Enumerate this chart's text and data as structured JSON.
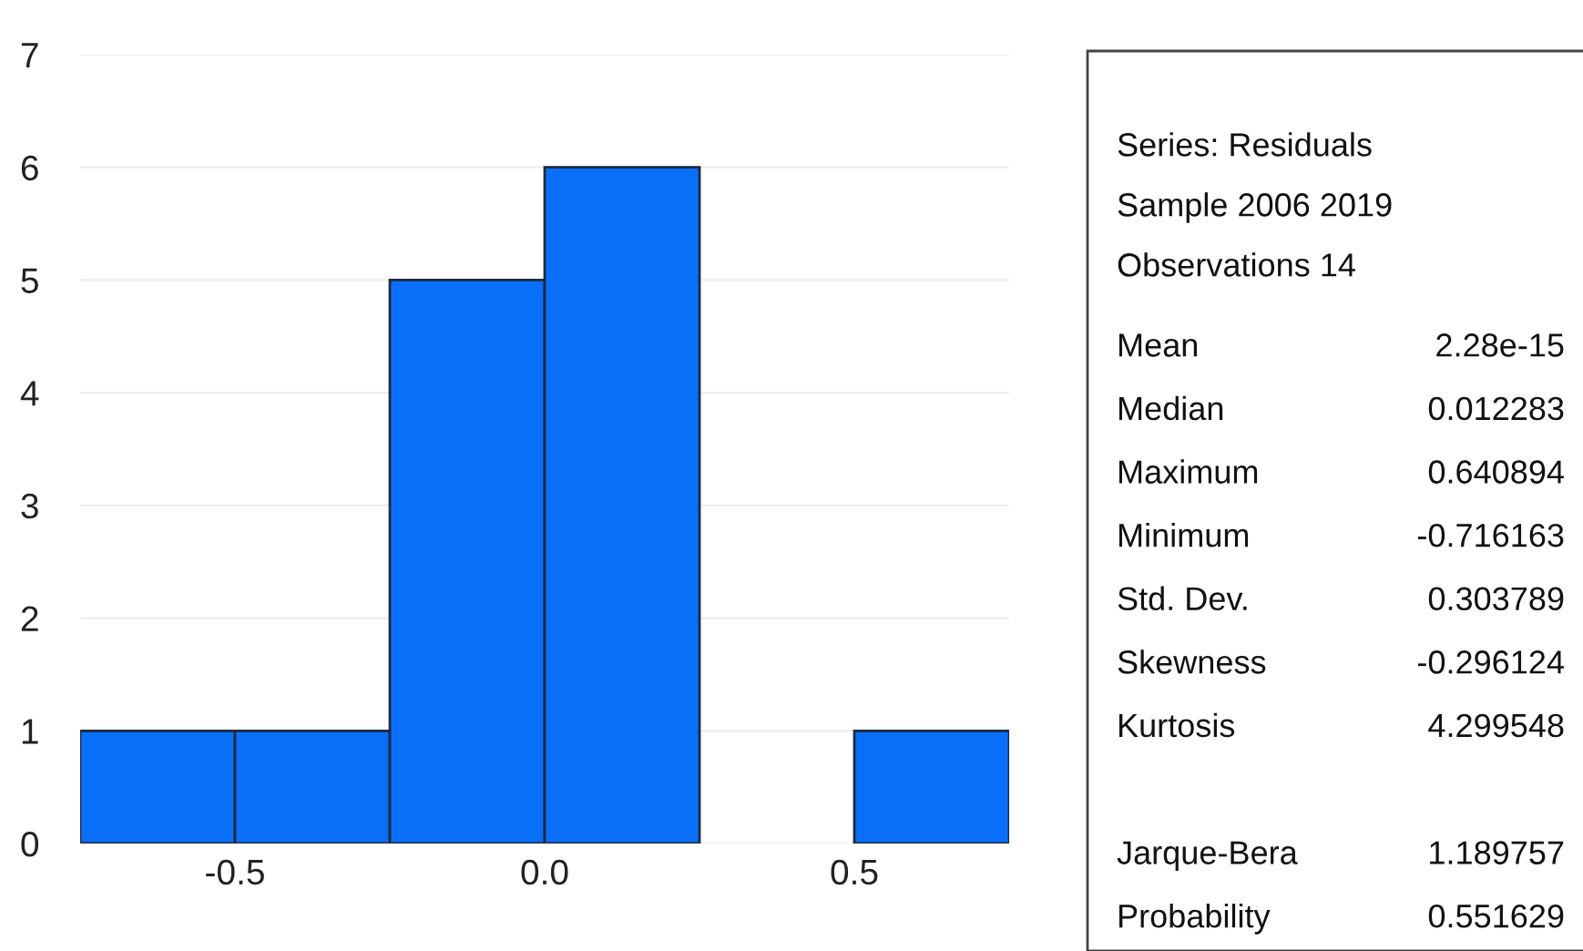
{
  "chart_data": {
    "type": "histogram",
    "bins": [
      -0.75,
      -0.5,
      -0.25,
      0.0,
      0.25,
      0.5,
      0.75
    ],
    "values": [
      1,
      1,
      5,
      6,
      0,
      1
    ],
    "color": "#0a70fa",
    "xlim": [
      -0.75,
      0.75
    ],
    "xticks": [
      -0.5,
      {
        "value": 0.0,
        "label": "0.0"
      },
      0.5
    ],
    "ylim": [
      0,
      7
    ],
    "yticks": [
      0,
      1,
      2,
      3,
      4,
      5,
      6,
      7
    ],
    "grid": "y",
    "annotations": [
      "Series: Residuals",
      "Sample 2006 2019",
      "Observations 14",
      "Mean\t2.28e-15",
      "Median\t0.012283",
      "Maximum\t0.640894",
      "Minimum\t-0.716163",
      "Std. Dev.\t0.303789",
      "Skewness\t-0.296124",
      "Kurtosis\t4.299548",
      "Jarque-Bera\t1.189757",
      "Probability\t0.551629"
    ]
  }
}
